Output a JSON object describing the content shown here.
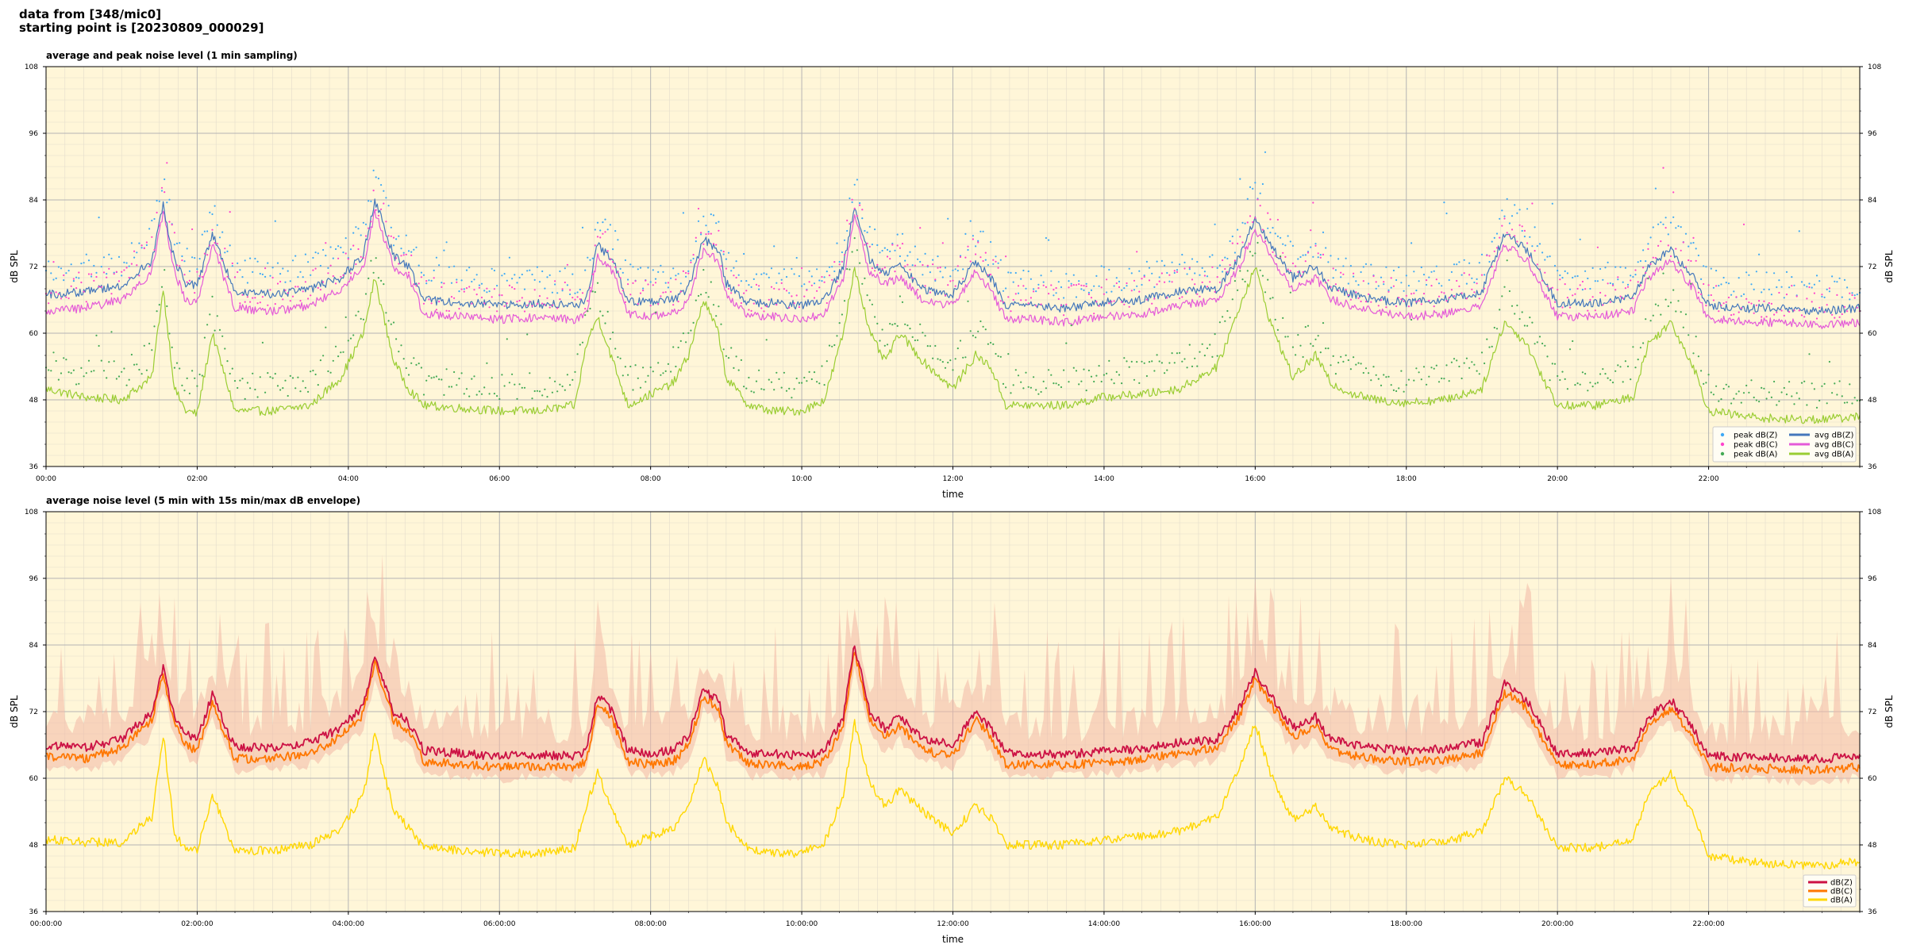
{
  "header": {
    "line1": "data from [348/mic0]",
    "line2": "starting point is [20230809_000029]"
  },
  "chart_data": [
    {
      "type": "line",
      "title": "average and peak noise level (1 min sampling)",
      "xlabel": "time",
      "ylabel": "dB SPL",
      "ylim": [
        36,
        108
      ],
      "yticks": [
        "36",
        "48",
        "60",
        "72",
        "84",
        "96",
        "108"
      ],
      "xlim_hours": [
        0,
        24
      ],
      "xticks": [
        "00:00",
        "02:00",
        "04:00",
        "06:00",
        "08:00",
        "10:00",
        "12:00",
        "14:00",
        "16:00",
        "18:00",
        "20:00",
        "22:00"
      ],
      "grid": true,
      "legend": "bottom-right",
      "x_hours": [
        0,
        0.5,
        1,
        1.4,
        1.55,
        1.7,
        1.85,
        2,
        2.2,
        2.5,
        3,
        3.5,
        3.9,
        4.2,
        4.35,
        4.6,
        4.8,
        5,
        5.5,
        6,
        6.5,
        7,
        7.15,
        7.3,
        7.5,
        7.7,
        8,
        8.3,
        8.5,
        8.7,
        8.9,
        9,
        9.3,
        9.6,
        10,
        10.3,
        10.55,
        10.7,
        10.9,
        11.1,
        11.3,
        11.6,
        12,
        12.3,
        12.5,
        12.7,
        13,
        13.5,
        14,
        14.5,
        15,
        15.5,
        15.8,
        16,
        16.2,
        16.5,
        16.8,
        17,
        17.3,
        17.6,
        18,
        18.5,
        19,
        19.3,
        19.6,
        19.8,
        20,
        20.5,
        21,
        21.2,
        21.5,
        21.8,
        22,
        22.5,
        23,
        23.5,
        24
      ],
      "series": [
        {
          "name": "avg dB(Z)",
          "kind": "line",
          "color": "#4477bb",
          "width": 1.2,
          "values": [
            67,
            67.5,
            68.5,
            73,
            83,
            73,
            69,
            68.5,
            78,
            67.5,
            67,
            68,
            70,
            74,
            84,
            74,
            72,
            66,
            65.5,
            65,
            65.3,
            65,
            66,
            76,
            73,
            66,
            65.5,
            66,
            68,
            77,
            75,
            69,
            65.5,
            65.5,
            65,
            66,
            72,
            83,
            73,
            71,
            72,
            68,
            67,
            73,
            70,
            65,
            65,
            64.5,
            65.5,
            66,
            67.5,
            68,
            74,
            81,
            76,
            70,
            72,
            68,
            67,
            66,
            65.5,
            66,
            67.5,
            78,
            75,
            70,
            65.5,
            65.5,
            66.5,
            72,
            75,
            70,
            65,
            64.5,
            64.5,
            64,
            64.5
          ]
        },
        {
          "name": "avg dB(C)",
          "kind": "line",
          "color": "#e45ad8",
          "width": 1.2,
          "values": [
            64,
            64.5,
            66,
            71,
            82,
            71,
            66,
            65.5,
            76,
            64.5,
            64,
            65,
            68,
            72,
            82,
            72,
            70,
            63.5,
            63,
            62.5,
            62.8,
            62.5,
            63.5,
            74,
            71,
            63.5,
            63,
            63.5,
            66,
            75,
            73,
            67,
            63,
            63,
            62.5,
            63.5,
            70,
            81,
            71,
            69,
            70,
            66,
            65,
            71,
            68,
            62.5,
            62.5,
            62,
            63,
            63.5,
            65,
            66,
            72,
            79,
            74,
            68,
            70,
            66,
            65,
            64,
            63,
            63.5,
            65,
            76,
            73,
            68,
            63,
            63,
            64,
            70,
            73,
            68,
            62.5,
            62,
            62,
            61.5,
            62
          ]
        },
        {
          "name": "avg dB(A)",
          "kind": "line",
          "color": "#9acd32",
          "width": 1.2,
          "values": [
            50,
            48.5,
            48,
            52,
            68,
            50,
            46,
            45.5,
            60,
            46,
            46,
            47,
            52,
            60,
            70,
            55,
            50,
            47,
            46.5,
            46,
            46,
            47,
            58,
            63,
            55,
            47,
            49,
            51,
            56,
            66,
            60,
            52,
            47,
            46,
            46,
            48,
            60,
            72,
            60,
            55,
            60,
            55,
            50,
            56,
            54,
            47,
            47,
            47,
            48.5,
            49,
            50,
            54,
            65,
            72,
            62,
            52,
            56,
            51,
            49,
            48,
            47.5,
            48,
            50,
            62,
            58,
            52,
            47,
            47,
            48.5,
            58,
            62,
            54,
            46,
            45,
            44.5,
            44.5,
            45
          ]
        },
        {
          "name": "peak dB(Z)",
          "kind": "dots",
          "color": "#3fa9f5",
          "offset": 3.2,
          "spread": 5
        },
        {
          "name": "peak dB(C)",
          "kind": "dots",
          "color": "#ff44cc",
          "offset": 2.6,
          "spread": 6
        },
        {
          "name": "peak dB(A)",
          "kind": "dots",
          "color": "#44aa55",
          "offset": 3.4,
          "spread": 5
        }
      ]
    },
    {
      "type": "line",
      "title": "average noise level (5 min with 15s min/max dB envelope)",
      "xlabel": "time",
      "ylabel": "dB SPL",
      "ylim": [
        36,
        108
      ],
      "yticks": [
        "36",
        "48",
        "60",
        "72",
        "84",
        "96",
        "108"
      ],
      "xlim_hours": [
        0,
        24
      ],
      "xticks": [
        "00:00:00",
        "02:00:00",
        "04:00:00",
        "06:00:00",
        "08:00:00",
        "10:00:00",
        "12:00:00",
        "14:00:00",
        "16:00:00",
        "18:00:00",
        "20:00:00",
        "22:00:00"
      ],
      "grid": true,
      "legend": "bottom-right",
      "envelope_color": "#f2b8a6",
      "x_hours": [
        0,
        0.5,
        1,
        1.4,
        1.55,
        1.7,
        1.85,
        2,
        2.2,
        2.5,
        3,
        3.5,
        3.9,
        4.2,
        4.35,
        4.6,
        4.8,
        5,
        5.5,
        6,
        6.5,
        7,
        7.15,
        7.3,
        7.5,
        7.7,
        8,
        8.3,
        8.5,
        8.7,
        8.9,
        9,
        9.3,
        9.6,
        10,
        10.3,
        10.55,
        10.7,
        10.9,
        11.1,
        11.3,
        11.6,
        12,
        12.3,
        12.5,
        12.7,
        13,
        13.5,
        14,
        14.5,
        15,
        15.5,
        15.8,
        16,
        16.2,
        16.5,
        16.8,
        17,
        17.3,
        17.6,
        18,
        18.5,
        19,
        19.3,
        19.6,
        19.8,
        20,
        20.5,
        21,
        21.2,
        21.5,
        21.8,
        22,
        22.5,
        23,
        23.5,
        24
      ],
      "series": [
        {
          "name": "dB(Z)",
          "kind": "line",
          "color": "#cc1144",
          "width": 1.8,
          "values": [
            66,
            65.5,
            67,
            72,
            80,
            71,
            68,
            67,
            75,
            65.5,
            65.5,
            66.5,
            69,
            73,
            82,
            72,
            70,
            65,
            64.5,
            64,
            64.2,
            64,
            65,
            75,
            72,
            65,
            64.5,
            65,
            67.5,
            76,
            74,
            68,
            64.5,
            64.5,
            64,
            65,
            71,
            84,
            72,
            69,
            71,
            67,
            66,
            72,
            69,
            64.5,
            64.5,
            64.3,
            64.8,
            65.3,
            66.5,
            67,
            73,
            79,
            75,
            69,
            71,
            67,
            66,
            65.5,
            65,
            65.3,
            66.5,
            77,
            74,
            69,
            64.5,
            64.5,
            65.5,
            71,
            74,
            69,
            64,
            63.8,
            63.7,
            63.5,
            64
          ]
        },
        {
          "name": "dB(C)",
          "kind": "line",
          "color": "#ff7700",
          "width": 1.8,
          "values": [
            64,
            63.5,
            65.5,
            70.5,
            79,
            69.5,
            66,
            65,
            73.5,
            63.5,
            63.5,
            64.5,
            67.5,
            71.5,
            81,
            70.5,
            68.5,
            63,
            62.5,
            62,
            62.2,
            62,
            63,
            73.5,
            70.5,
            63,
            62.5,
            63,
            66,
            74.5,
            72.5,
            66.5,
            62.5,
            62.5,
            62,
            63,
            69.5,
            83,
            70.5,
            67.5,
            69.5,
            65,
            64,
            70.5,
            67.5,
            62.5,
            62.5,
            62.3,
            62.8,
            63.3,
            64.5,
            65.5,
            71.5,
            78,
            73.5,
            67.5,
            69.5,
            65,
            64,
            63.5,
            63,
            63.3,
            64.5,
            75.5,
            72.5,
            67,
            62.5,
            62.5,
            63.5,
            69.5,
            72.5,
            67,
            62,
            61.8,
            61.7,
            61.5,
            62
          ]
        },
        {
          "name": "dB(A)",
          "kind": "line",
          "color": "#ffd700",
          "width": 1.4,
          "values": [
            49,
            48.5,
            48.5,
            53,
            68,
            50,
            47,
            47,
            57,
            47,
            47,
            48,
            51,
            57,
            68,
            54,
            51,
            47.5,
            47,
            46.5,
            46.5,
            47.5,
            55,
            61,
            54,
            48,
            49.5,
            51,
            55,
            64,
            58,
            52,
            47.5,
            46.5,
            46.5,
            48.5,
            57,
            70,
            59,
            55,
            58,
            54,
            50,
            55,
            53,
            48,
            48,
            48,
            49,
            49.5,
            50.5,
            53,
            62,
            70,
            61,
            52.5,
            55,
            51,
            49.5,
            48.5,
            48,
            48.5,
            50.5,
            60,
            57,
            52,
            47.5,
            47.5,
            49,
            57,
            61,
            53.5,
            46,
            45,
            44.5,
            44.3,
            45
          ]
        }
      ]
    }
  ]
}
